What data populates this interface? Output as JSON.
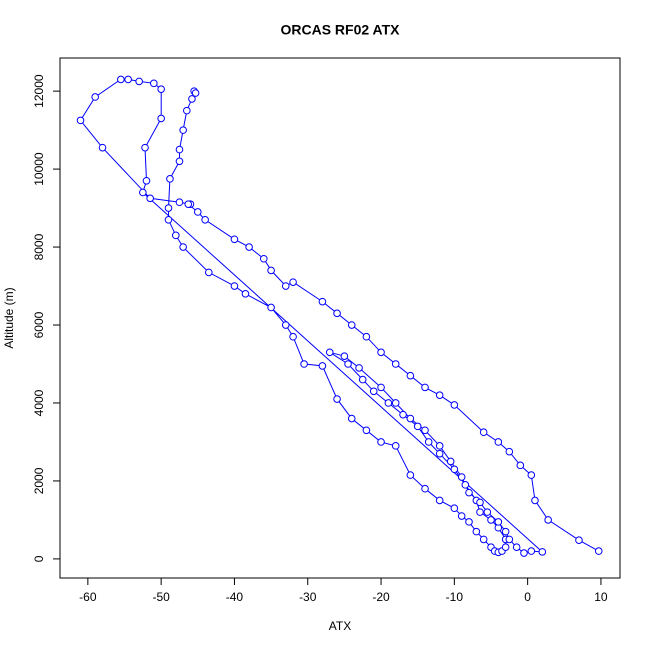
{
  "chart_data": {
    "type": "line",
    "title": "ORCAS RF02 ATX",
    "x_label": "ATX",
    "y_label": "Altitude (m)",
    "color": "#0000ff",
    "x": [
      -45.5,
      -45.3,
      -45.8,
      -46.5,
      -47,
      -47.5,
      -47.5,
      -48.8,
      -49,
      -49,
      -48,
      -47,
      -43.5,
      -40,
      -38.5,
      -35,
      -33,
      -32,
      -30.5,
      -28,
      -26,
      -24,
      -22,
      -20,
      -18,
      -16,
      -14,
      -12,
      -10,
      -9,
      -8,
      -7,
      -6,
      -5,
      -4.5,
      -4,
      -3.5,
      -3,
      -3,
      -4,
      -5,
      -6.5,
      -7,
      -8.5,
      -10,
      -12,
      -13.5,
      -15,
      -17,
      -19,
      -21,
      -22.5,
      -24.5,
      -27,
      -25,
      -23,
      -20,
      -18,
      -16,
      -14,
      -12,
      -10.5,
      -9,
      -8,
      -6.5,
      -5.5,
      -4,
      -3,
      -2.5,
      -1.5,
      -0.5,
      0.5,
      2,
      -52.5,
      -52,
      -52.2,
      -50,
      -50,
      -51,
      -53,
      -54.5,
      -55.5,
      -59,
      -61,
      -58,
      -51.5,
      -47.5,
      -46,
      -46.3,
      -45,
      -44,
      -40,
      -38,
      -36,
      -35,
      -33,
      -32,
      -28,
      -26,
      -24,
      -22,
      -20,
      -18,
      -16,
      -14,
      -12,
      -10,
      -6,
      -4,
      -2.5,
      -1,
      0.5,
      1,
      2.8,
      7,
      9.7
    ],
    "values": [
      12000,
      11950,
      11800,
      11500,
      11000,
      10500,
      10200,
      9750,
      9000,
      8700,
      8300,
      8000,
      7350,
      7000,
      6800,
      6450,
      6000,
      5700,
      5000,
      4950,
      4100,
      3600,
      3300,
      3000,
      2900,
      2150,
      1800,
      1500,
      1300,
      1100,
      950,
      700,
      500,
      300,
      200,
      170,
      200,
      300,
      500,
      800,
      1000,
      1200,
      1500,
      1900,
      2300,
      2700,
      3000,
      3400,
      3700,
      4000,
      4300,
      4600,
      5000,
      5300,
      5200,
      4900,
      4400,
      4000,
      3600,
      3300,
      2900,
      2500,
      2100,
      1700,
      1450,
      1200,
      950,
      700,
      500,
      300,
      150,
      200,
      180,
      9400,
      9700,
      10550,
      11300,
      12050,
      12200,
      12250,
      12300,
      12300,
      11850,
      11250,
      10550,
      9250,
      9150,
      9100,
      9100,
      8900,
      8700,
      8200,
      8000,
      7700,
      7400,
      7000,
      7100,
      6600,
      6300,
      6000,
      5700,
      5300,
      5000,
      4700,
      4400,
      4200,
      3950,
      3250,
      3000,
      2750,
      2400,
      2150,
      1500,
      1000,
      480,
      200
    ],
    "xlim": [
      -63.8,
      12.6
    ],
    "ylim": [
      -490,
      12850
    ],
    "xticks": [
      -60,
      -50,
      -40,
      -30,
      -20,
      -10,
      0,
      10
    ],
    "yticks": [
      0,
      2000,
      4000,
      6000,
      8000,
      10000,
      12000
    ]
  }
}
